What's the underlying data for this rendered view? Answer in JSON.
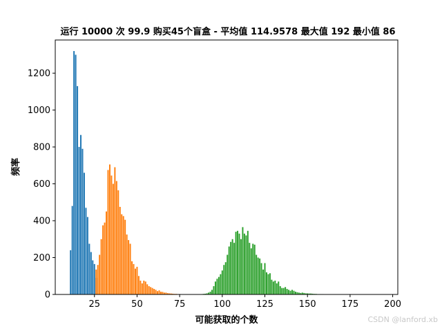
{
  "watermark": "CSDN @lanford.xb",
  "chart_data": {
    "type": "bar",
    "title": "运行 10000 次 99.9 购买45个盲盒 - 平均值 114.9578 最大值 192 最小值 86",
    "xlabel": "可能获取的个数",
    "ylabel": "频率",
    "xlim": [
      2,
      203
    ],
    "ylim": [
      0,
      1380
    ],
    "xticks": [
      25,
      50,
      75,
      100,
      125,
      150,
      175,
      200
    ],
    "yticks": [
      0,
      200,
      400,
      600,
      800,
      1000,
      1200
    ],
    "colors": {
      "blue": "#1f77b4",
      "orange": "#ff7f0e",
      "green": "#2ca02c"
    },
    "series": [
      {
        "color": "#1f77b4",
        "x": [
          11,
          12,
          13,
          14,
          15,
          16,
          17,
          18,
          19,
          20,
          21,
          22,
          23,
          24,
          25,
          26
        ],
        "values": [
          240,
          480,
          1320,
          1300,
          1130,
          800,
          865,
          790,
          660,
          470,
          420,
          275,
          230,
          185,
          165,
          90
        ]
      },
      {
        "color": "#ff7f0e",
        "x": [
          26,
          27,
          28,
          29,
          30,
          31,
          32,
          33,
          34,
          35,
          36,
          37,
          38,
          39,
          40,
          41,
          42,
          43,
          44,
          45,
          46,
          47,
          48,
          49,
          50,
          51,
          52,
          53,
          54,
          55,
          56,
          57,
          58,
          59,
          60,
          61,
          62,
          63,
          64,
          65,
          66,
          67,
          68,
          69,
          70,
          71,
          72,
          73,
          74,
          75,
          76,
          77,
          78
        ],
        "values": [
          135,
          160,
          215,
          300,
          375,
          390,
          450,
          675,
          705,
          645,
          600,
          690,
          615,
          565,
          475,
          435,
          425,
          405,
          325,
          295,
          275,
          180,
          165,
          140,
          150,
          100,
          75,
          60,
          75,
          70,
          55,
          45,
          40,
          35,
          30,
          25,
          18,
          22,
          15,
          14,
          10,
          10,
          7,
          6,
          5,
          4,
          3,
          3,
          2,
          2,
          1,
          1,
          1
        ]
      },
      {
        "color": "#2ca02c",
        "x": [
          86,
          87,
          88,
          89,
          90,
          91,
          92,
          93,
          94,
          95,
          96,
          97,
          98,
          99,
          100,
          101,
          102,
          103,
          104,
          105,
          106,
          107,
          108,
          109,
          110,
          111,
          112,
          113,
          114,
          115,
          116,
          117,
          118,
          119,
          120,
          121,
          122,
          123,
          124,
          125,
          126,
          127,
          128,
          129,
          130,
          131,
          132,
          133,
          134,
          135,
          136,
          137,
          138,
          139,
          140,
          141,
          142,
          143,
          144,
          145,
          146,
          147,
          148,
          149,
          150,
          151,
          152,
          153,
          154,
          155,
          156,
          157,
          158,
          159,
          160,
          161,
          162,
          163,
          164,
          165,
          166,
          167,
          168,
          169,
          170,
          171,
          172,
          173,
          174,
          175,
          176,
          177,
          178,
          179,
          180,
          181,
          182,
          183,
          184,
          185,
          186,
          187,
          188,
          189,
          190,
          191,
          192
        ],
        "values": [
          1,
          1,
          2,
          3,
          4,
          6,
          10,
          15,
          25,
          45,
          70,
          85,
          95,
          110,
          130,
          160,
          175,
          215,
          260,
          285,
          300,
          280,
          340,
          345,
          330,
          300,
          365,
          330,
          320,
          345,
          280,
          250,
          275,
          270,
          215,
          200,
          195,
          170,
          135,
          170,
          120,
          110,
          115,
          80,
          70,
          75,
          60,
          70,
          45,
          35,
          35,
          40,
          30,
          25,
          20,
          25,
          20,
          15,
          12,
          10,
          8,
          10,
          8,
          6,
          6,
          5,
          5,
          4,
          3,
          3,
          2,
          2,
          2,
          2,
          1,
          1,
          1,
          1,
          1,
          1,
          1,
          1,
          1,
          1,
          1,
          1,
          1,
          1,
          1,
          1,
          1,
          1,
          1,
          1,
          1,
          1,
          1,
          1,
          1,
          1,
          1,
          1,
          1,
          1,
          1,
          1,
          1
        ]
      }
    ],
    "grid": false,
    "legend": false
  }
}
